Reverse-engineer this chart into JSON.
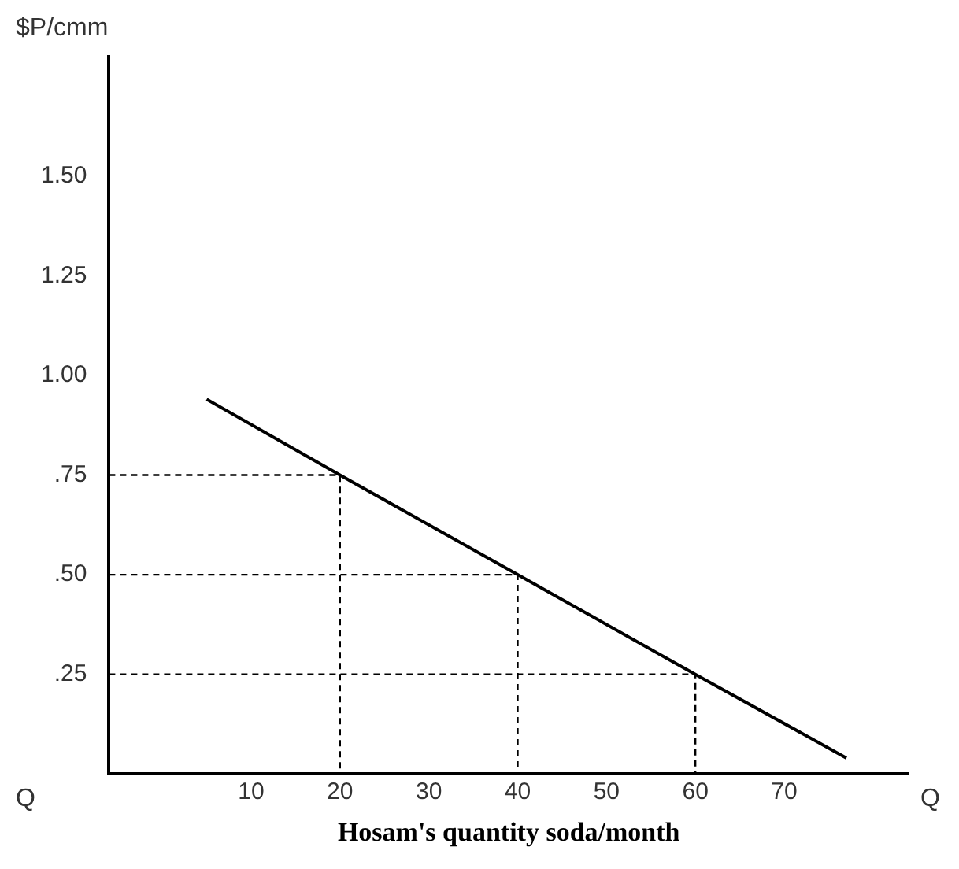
{
  "chart_data": {
    "type": "line",
    "xlabel": "Hosam's quantity soda/month",
    "ylabel": "$P/cmm",
    "annotations": [
      "Q",
      "Q"
    ],
    "xlim": [
      -6,
      84
    ],
    "ylim": [
      0,
      1.8
    ],
    "xticks": [
      10,
      20,
      30,
      40,
      50,
      60,
      70
    ],
    "yticks": [
      {
        "value": 0.25,
        "label": ".25"
      },
      {
        "value": 0.5,
        "label": ".50"
      },
      {
        "value": 0.75,
        "label": ".75"
      },
      {
        "value": 1,
        "label": "1.00"
      },
      {
        "value": 1.25,
        "label": "1.25"
      },
      {
        "value": 1.5,
        "label": "1.50"
      }
    ],
    "grid": false,
    "legend": false,
    "marker": "none",
    "series": [
      {
        "color": "#000000",
        "line_style": "solid",
        "x": [
          5,
          20,
          40,
          60,
          77
        ],
        "values": [
          0.94,
          0.75,
          0.5,
          0.25,
          0.04
        ]
      },
      {
        "color": "#000000",
        "line_style": "dashed",
        "x": [
          -6,
          20,
          20
        ],
        "values": [
          0.75,
          0.75,
          0
        ]
      },
      {
        "color": "#000000",
        "line_style": "dashed",
        "x": [
          -6,
          40,
          40
        ],
        "values": [
          0.5,
          0.5,
          0
        ]
      },
      {
        "color": "#000000",
        "line_style": "dashed",
        "x": [
          -6,
          60,
          60
        ],
        "values": [
          0.25,
          0.25,
          0
        ]
      }
    ]
  }
}
